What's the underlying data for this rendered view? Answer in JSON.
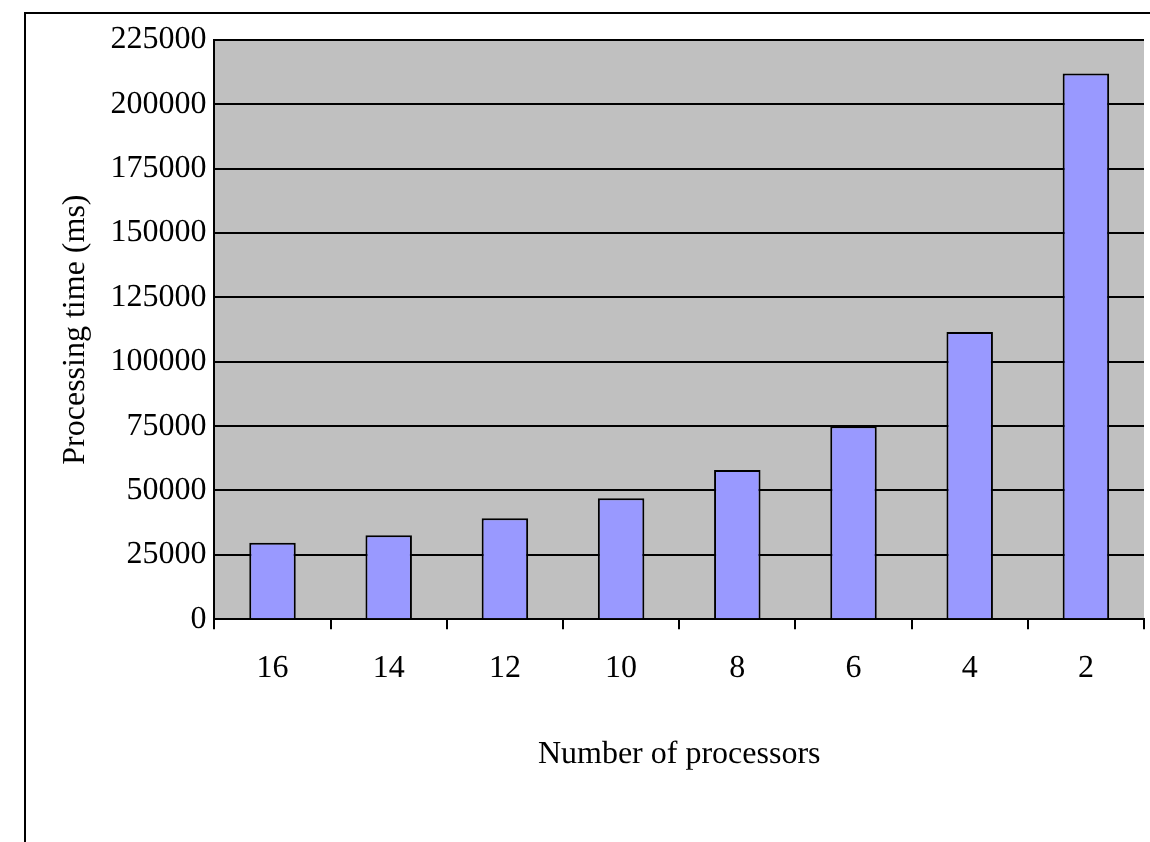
{
  "chart_data": {
    "type": "bar",
    "xlabel": "Number of processors",
    "ylabel": "Processing time (ms)",
    "categories": [
      "16",
      "14",
      "12",
      "10",
      "8",
      "6",
      "4",
      "2"
    ],
    "values": [
      29700,
      32600,
      39200,
      47000,
      58000,
      75000,
      111600,
      212000
    ],
    "color": "#9999ff",
    "ylim": [
      0,
      225000
    ],
    "yticks": [
      0,
      25000,
      50000,
      75000,
      100000,
      125000,
      150000,
      175000,
      200000,
      225000
    ],
    "grid": "y",
    "legend": false
  }
}
